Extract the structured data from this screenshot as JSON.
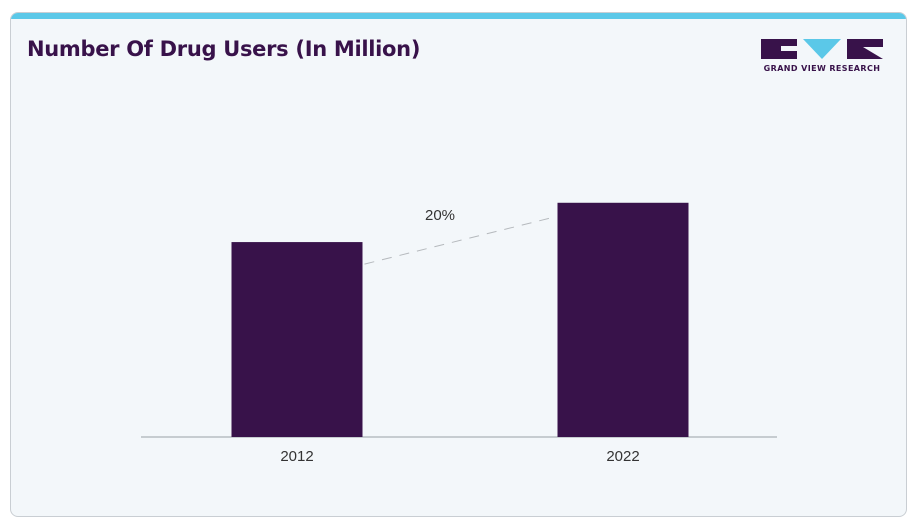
{
  "title": "Number Of Drug Users (In Million)",
  "logo": {
    "text": "GRAND VIEW RESEARCH",
    "icon": "gvr-logo-icon",
    "colors": {
      "primary": "#38124a",
      "accent": "#5bc8e8"
    }
  },
  "colors": {
    "bar": "#38124a",
    "header_bar": "#5bc8e8",
    "background": "#f3f7fa",
    "axis": "#9aa0a6",
    "trend_line": "#b5b9bd"
  },
  "chart_data": {
    "type": "bar",
    "categories": [
      "2012",
      "2022"
    ],
    "values": [
      243,
      292
    ],
    "annotation": "20%",
    "title": "Number Of Drug Users (In Million)",
    "xlabel": "",
    "ylabel": "",
    "ylim": [
      0,
      374
    ],
    "grid": false,
    "legend": "none"
  }
}
